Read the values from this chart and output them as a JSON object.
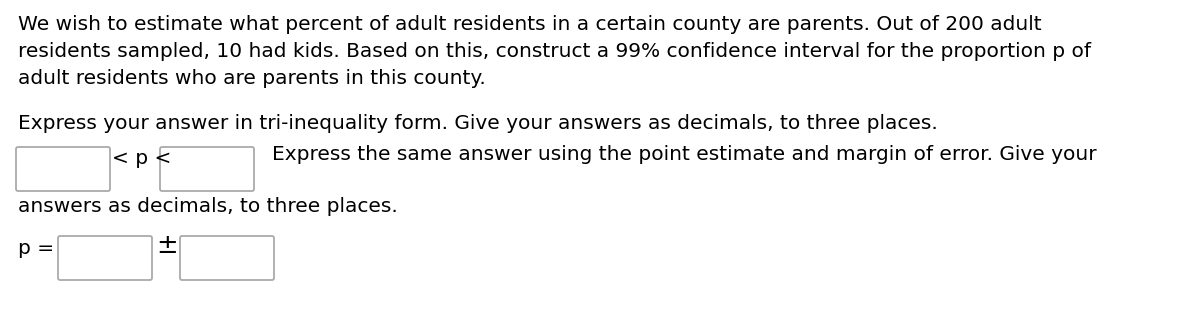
{
  "background_color": "#ffffff",
  "text_color": "#000000",
  "font_family": "DejaVu Sans",
  "line1": "We wish to estimate what percent of adult residents in a certain county are parents. Out of 200 adult",
  "line2": "residents sampled, 10 had kids. Based on this, construct a 99% confidence interval for the proportion p of",
  "line3": "adult residents who are parents in this county.",
  "paragraph2": "Express your answer in tri-inequality form. Give your answers as decimals, to three places.",
  "inequality_text": "< p <",
  "side_text": "Express the same answer using the point estimate and margin of error. Give your",
  "side_text2": "answers as decimals, to three places.",
  "bottom_label": "p =",
  "pm_symbol": "±",
  "font_size_main": 14.5,
  "fig_width": 12.0,
  "fig_height": 3.31,
  "dpi": 100
}
